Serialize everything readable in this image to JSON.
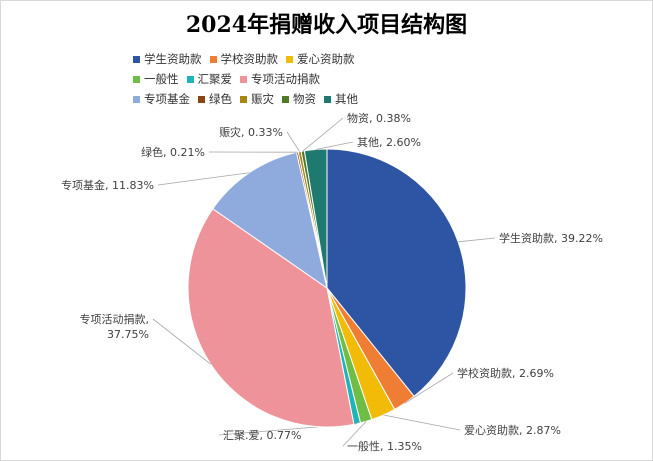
{
  "chart_data": {
    "type": "pie",
    "title": "2024年捐赠收入项目结构图",
    "legend_position": "top-left",
    "slices": [
      {
        "name": "学生资助款",
        "value": 39.22,
        "label": "学生资助款, 39.22%",
        "color": "#2e55a3"
      },
      {
        "name": "学校资助款",
        "value": 2.69,
        "label": "学校资助款, 2.69%",
        "color": "#ef7e34"
      },
      {
        "name": "爱心资助款",
        "value": 2.87,
        "label": "爱心资助款, 2.87%",
        "color": "#f2bb07"
      },
      {
        "name": "一般性",
        "value": 1.35,
        "label": "一般性, 1.35%",
        "color": "#6fbd45"
      },
      {
        "name": "汇聚爱",
        "value": 0.77,
        "label": "汇聚.爱, 0.77%",
        "color": "#1fb5b8"
      },
      {
        "name": "专项活动捐款",
        "value": 37.75,
        "label": "专项活动捐款,\n37.75%",
        "color": "#ef939b"
      },
      {
        "name": "专项基金",
        "value": 11.83,
        "label": "专项基金, 11.83%",
        "color": "#8faadc"
      },
      {
        "name": "绿色",
        "value": 0.21,
        "label": "绿色, 0.21%",
        "color": "#8b4513"
      },
      {
        "name": "赈灾",
        "value": 0.33,
        "label": "赈灾, 0.33%",
        "color": "#a8860f"
      },
      {
        "name": "物资",
        "value": 0.38,
        "label": "物资, 0.38%",
        "color": "#4f7a28"
      },
      {
        "name": "其他",
        "value": 2.6,
        "label": "其他, 2.60%",
        "color": "#1e7a6e"
      }
    ]
  }
}
